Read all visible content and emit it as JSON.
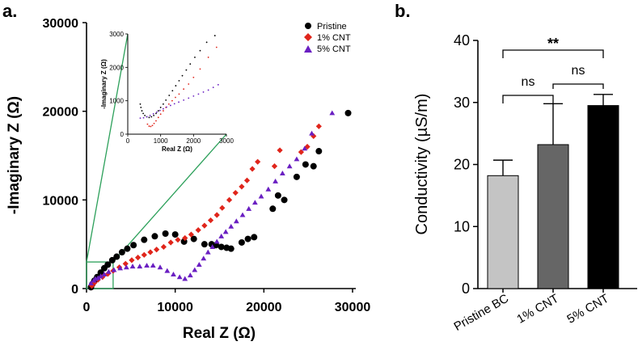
{
  "panel_a_label": "a.",
  "panel_b_label": "b.",
  "colors": {
    "pristine": "#000000",
    "cnt1": "#e0251b",
    "cnt5": "#6a1fc2",
    "zoom": "#2ca05a",
    "bar_pristine": "#c4c4c4",
    "bar_cnt1": "#666666",
    "bar_cnt5": "#000000"
  },
  "chart_data": [
    {
      "id": "nyquist-main",
      "type": "scatter",
      "title": "",
      "xlabel": "Real Z (Ω)",
      "ylabel": "-Imaginary Z (Ω)",
      "xlim": [
        0,
        30000
      ],
      "ylim": [
        0,
        30000
      ],
      "xticks": [
        0,
        10000,
        20000,
        30000
      ],
      "yticks": [
        0,
        10000,
        20000,
        30000
      ],
      "tick_labels_x": [
        "0",
        "10000",
        "20000",
        "30000"
      ],
      "tick_labels_y": [
        "0",
        "10000",
        "20000",
        "30000"
      ],
      "legend": "top-right",
      "zoom_box": {
        "x": [
          0,
          3000
        ],
        "y": [
          0,
          3000
        ]
      },
      "series": [
        {
          "name": "Pristine",
          "marker": "circle",
          "points": [
            [
              500,
              150
            ],
            [
              650,
              500
            ],
            [
              900,
              900
            ],
            [
              1200,
              1300
            ],
            [
              1600,
              1800
            ],
            [
              2000,
              2300
            ],
            [
              2400,
              2700
            ],
            [
              2900,
              3200
            ],
            [
              3400,
              3600
            ],
            [
              4000,
              4100
            ],
            [
              4600,
              4500
            ],
            [
              5300,
              4900
            ],
            [
              6500,
              5500
            ],
            [
              7700,
              5900
            ],
            [
              8900,
              6200
            ],
            [
              10000,
              6100
            ],
            [
              11000,
              5300
            ],
            [
              12100,
              5600
            ],
            [
              13300,
              5000
            ],
            [
              14100,
              5000
            ],
            [
              14600,
              4900
            ],
            [
              15200,
              4700
            ],
            [
              15800,
              4600
            ],
            [
              16300,
              4500
            ],
            [
              17500,
              5200
            ],
            [
              18200,
              5600
            ],
            [
              18900,
              5800
            ],
            [
              21000,
              9000
            ],
            [
              21600,
              10500
            ],
            [
              22300,
              10000
            ],
            [
              23700,
              12600
            ],
            [
              24700,
              14000
            ],
            [
              25600,
              13800
            ],
            [
              26200,
              15500
            ],
            [
              29500,
              19800
            ]
          ]
        },
        {
          "name": "1% CNT",
          "marker": "diamond",
          "points": [
            [
              600,
              300
            ],
            [
              900,
              650
            ],
            [
              1300,
              1000
            ],
            [
              1800,
              1300
            ],
            [
              2400,
              1650
            ],
            [
              3000,
              2000
            ],
            [
              3700,
              2400
            ],
            [
              4400,
              2800
            ],
            [
              5100,
              3200
            ],
            [
              5800,
              3500
            ],
            [
              6500,
              3800
            ],
            [
              7200,
              4100
            ],
            [
              7900,
              4400
            ],
            [
              8700,
              4700
            ],
            [
              9500,
              5200
            ],
            [
              10300,
              5500
            ],
            [
              11100,
              5700
            ],
            [
              11800,
              6100
            ],
            [
              12600,
              6600
            ],
            [
              13300,
              7100
            ],
            [
              14000,
              7700
            ],
            [
              14700,
              8300
            ],
            [
              15300,
              9100
            ],
            [
              16100,
              10000
            ],
            [
              16800,
              10800
            ],
            [
              17500,
              11500
            ],
            [
              18100,
              12200
            ],
            [
              18700,
              13500
            ],
            [
              19300,
              14300
            ],
            [
              21200,
              13800
            ],
            [
              21800,
              15600
            ],
            [
              24200,
              15400
            ],
            [
              24900,
              16000
            ],
            [
              25600,
              17200
            ],
            [
              26200,
              18300
            ]
          ]
        },
        {
          "name": "5% CNT",
          "marker": "triangle",
          "points": [
            [
              500,
              600
            ],
            [
              800,
              900
            ],
            [
              1000,
              1100
            ],
            [
              1300,
              1200
            ],
            [
              1600,
              1400
            ],
            [
              2000,
              1600
            ],
            [
              2500,
              1900
            ],
            [
              3100,
              2100
            ],
            [
              3800,
              2300
            ],
            [
              4500,
              2400
            ],
            [
              5200,
              2500
            ],
            [
              6000,
              2500
            ],
            [
              6800,
              2600
            ],
            [
              7500,
              2600
            ],
            [
              8300,
              2400
            ],
            [
              9100,
              2000
            ],
            [
              9800,
              1600
            ],
            [
              10500,
              1300
            ],
            [
              11100,
              1100
            ],
            [
              11700,
              1500
            ],
            [
              12200,
              2100
            ],
            [
              12700,
              2700
            ],
            [
              13200,
              3400
            ],
            [
              13700,
              4100
            ],
            [
              14200,
              4700
            ],
            [
              14700,
              5300
            ],
            [
              15200,
              5900
            ],
            [
              15700,
              6400
            ],
            [
              16300,
              7000
            ],
            [
              16900,
              7600
            ],
            [
              17600,
              8300
            ],
            [
              18300,
              9000
            ],
            [
              19000,
              9700
            ],
            [
              19700,
              10400
            ],
            [
              20500,
              11200
            ],
            [
              21300,
              12100
            ],
            [
              22100,
              13000
            ],
            [
              22900,
              13800
            ],
            [
              23700,
              14600
            ],
            [
              24600,
              15800
            ],
            [
              25400,
              17500
            ],
            [
              27700,
              19800
            ]
          ]
        }
      ]
    },
    {
      "id": "nyquist-inset",
      "type": "scatter",
      "title": "",
      "xlabel": "Real Z (Ω)",
      "ylabel": "-Imaginary Z (Ω)",
      "xlim": [
        0,
        3000
      ],
      "ylim": [
        0,
        3000
      ],
      "tick_labels_x": [
        "0",
        "1000",
        "2000",
        "3000"
      ],
      "tick_labels_y": [
        "0",
        "1000",
        "2000",
        "3000"
      ],
      "series": [
        {
          "name": "Pristine",
          "points": [
            [
              380,
              900
            ],
            [
              400,
              800
            ],
            [
              430,
              700
            ],
            [
              470,
              620
            ],
            [
              520,
              560
            ],
            [
              580,
              520
            ],
            [
              650,
              500
            ],
            [
              720,
              520
            ],
            [
              790,
              560
            ],
            [
              860,
              620
            ],
            [
              930,
              700
            ],
            [
              1000,
              800
            ],
            [
              1080,
              900
            ],
            [
              1160,
              1020
            ],
            [
              1260,
              1160
            ],
            [
              1360,
              1300
            ],
            [
              1460,
              1450
            ],
            [
              1560,
              1600
            ],
            [
              1660,
              1750
            ],
            [
              1780,
              1920
            ],
            [
              1900,
              2100
            ],
            [
              2040,
              2300
            ],
            [
              2200,
              2500
            ],
            [
              2400,
              2750
            ],
            [
              2650,
              2950
            ]
          ]
        },
        {
          "name": "1% CNT",
          "points": [
            [
              600,
              300
            ],
            [
              650,
              240
            ],
            [
              700,
              230
            ],
            [
              750,
              260
            ],
            [
              800,
              320
            ],
            [
              860,
              400
            ],
            [
              930,
              500
            ],
            [
              1000,
              600
            ],
            [
              1080,
              700
            ],
            [
              1160,
              800
            ],
            [
              1250,
              900
            ],
            [
              1350,
              1000
            ],
            [
              1450,
              1100
            ],
            [
              1560,
              1200
            ],
            [
              1700,
              1350
            ],
            [
              1850,
              1500
            ],
            [
              2000,
              1700
            ],
            [
              2200,
              1950
            ],
            [
              2450,
              2300
            ],
            [
              2700,
              2600
            ]
          ]
        },
        {
          "name": "5% CNT",
          "points": [
            [
              380,
              480
            ],
            [
              480,
              490
            ],
            [
              580,
              520
            ],
            [
              680,
              560
            ],
            [
              780,
              610
            ],
            [
              880,
              660
            ],
            [
              980,
              710
            ],
            [
              1080,
              760
            ],
            [
              1180,
              810
            ],
            [
              1300,
              860
            ],
            [
              1420,
              910
            ],
            [
              1550,
              960
            ],
            [
              1700,
              1020
            ],
            [
              1850,
              1080
            ],
            [
              2000,
              1140
            ],
            [
              2150,
              1200
            ],
            [
              2300,
              1260
            ],
            [
              2450,
              1320
            ],
            [
              2600,
              1400
            ],
            [
              2750,
              1480
            ]
          ]
        }
      ]
    },
    {
      "id": "conductivity",
      "type": "bar",
      "title": "",
      "xlabel": "",
      "ylabel": "Conductivity (µS/m)",
      "ylim": [
        0,
        40
      ],
      "yticks": [
        "0",
        "10",
        "20",
        "30",
        "40"
      ],
      "categories": [
        "Pristine BC",
        "1% CNT",
        "5% CNT"
      ],
      "values": [
        18.2,
        23.2,
        29.5
      ],
      "error_upper": [
        20.7,
        29.8,
        31.3
      ],
      "significance": [
        {
          "from": 0,
          "to": 1,
          "label": "ns",
          "level": 1
        },
        {
          "from": 1,
          "to": 2,
          "label": "ns",
          "level": 2
        },
        {
          "from": 0,
          "to": 2,
          "label": "**",
          "level": 3
        }
      ]
    }
  ]
}
